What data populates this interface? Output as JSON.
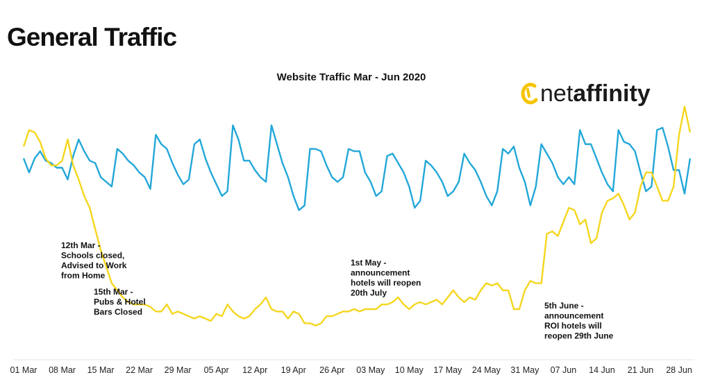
{
  "page_heading": "General Traffic",
  "logo": [
    "net",
    "affinity"
  ],
  "chart_data": {
    "type": "line",
    "title": "Website Traffic Mar - Jun 2020",
    "categories": [
      "01 Mar",
      null,
      null,
      null,
      null,
      null,
      null,
      "08 Mar",
      null,
      null,
      null,
      null,
      null,
      null,
      "15 Mar",
      null,
      null,
      null,
      null,
      null,
      null,
      "22 Mar",
      null,
      null,
      null,
      null,
      null,
      null,
      "29 Mar",
      null,
      null,
      null,
      null,
      null,
      null,
      "05 Apr",
      null,
      null,
      null,
      null,
      null,
      null,
      "12 Apr",
      null,
      null,
      null,
      null,
      null,
      null,
      "19 Apr",
      null,
      null,
      null,
      null,
      null,
      null,
      "26 Apr",
      null,
      null,
      null,
      null,
      null,
      null,
      "03 May",
      null,
      null,
      null,
      null,
      null,
      null,
      "10 May",
      null,
      null,
      null,
      null,
      null,
      null,
      "17 May",
      null,
      null,
      null,
      null,
      null,
      null,
      "24 May",
      null,
      null,
      null,
      null,
      null,
      null,
      "31 May",
      null,
      null,
      null,
      null,
      null,
      null,
      "07 Jun",
      null,
      null,
      null,
      null,
      null,
      null,
      "14 Jun",
      null,
      null,
      null,
      null,
      null,
      null,
      "21 Jun",
      null,
      null,
      null,
      null,
      null,
      null,
      "28 Jun",
      null,
      null
    ],
    "ylim": [
      0,
      100
    ],
    "series": [
      {
        "color": "#22a7d8",
        "values": [
          74,
          68,
          74,
          77,
          73,
          72,
          70,
          70,
          65,
          75,
          82,
          77,
          73,
          72,
          66,
          64,
          62,
          78,
          76,
          73,
          71,
          68,
          66,
          61,
          84,
          80,
          78,
          72,
          67,
          63,
          65,
          80,
          82,
          74,
          68,
          63,
          58,
          60,
          88,
          82,
          73,
          73,
          69,
          66,
          64,
          88,
          80,
          72,
          66,
          58,
          52,
          54,
          78,
          78,
          77,
          71,
          66,
          64,
          66,
          78,
          77,
          77,
          68,
          64,
          58,
          60,
          75,
          76,
          72,
          68,
          62,
          53,
          56,
          73,
          71,
          68,
          64,
          58,
          60,
          64,
          76,
          72,
          69,
          64,
          58,
          54,
          60,
          78,
          76,
          79,
          70,
          64,
          54,
          62,
          80,
          76,
          72,
          66,
          63,
          66,
          63,
          86,
          80,
          80,
          74,
          68,
          63,
          60,
          86,
          81,
          80,
          77,
          68,
          60,
          62,
          86,
          87,
          79,
          69,
          69,
          59,
          74
        ]
      },
      {
        "color": "#f5d61d",
        "values": [
          79,
          86,
          85,
          81,
          74,
          71,
          71,
          73,
          82,
          71,
          65,
          58,
          53,
          44,
          35,
          28,
          21,
          18,
          15,
          13,
          12,
          12,
          12,
          11,
          9,
          9,
          12,
          8,
          9,
          8,
          7,
          6,
          7,
          6,
          5,
          8,
          7,
          12,
          9,
          7,
          6,
          7,
          10,
          12,
          15,
          10,
          9,
          9,
          6,
          9,
          8,
          4,
          4,
          3,
          4,
          7,
          7,
          8,
          9,
          9,
          10,
          9,
          10,
          10,
          10,
          12,
          12,
          13,
          15,
          12,
          10,
          12,
          13,
          12,
          13,
          14,
          12,
          15,
          18,
          15,
          13,
          15,
          14,
          18,
          21,
          20,
          21,
          18,
          18,
          10,
          10,
          18,
          22,
          21,
          21,
          42,
          43,
          41,
          47,
          53,
          52,
          46,
          48,
          38,
          40,
          51,
          56,
          57,
          59,
          54,
          48,
          51,
          62,
          68,
          68,
          62,
          56,
          56,
          62,
          84,
          96,
          85
        ]
      }
    ],
    "annotations": [
      [
        "12th Mar -",
        "Schools closed,",
        "Advised to Work",
        "from Home"
      ],
      [
        "15th Mar -",
        "Pubs & Hotel",
        "Bars Closed"
      ],
      [
        "1st May -",
        "announcement",
        "hotels will reopen",
        "20th July"
      ],
      [
        "5th June -",
        "announcement",
        "ROI hotels will",
        "reopen 29th June"
      ]
    ]
  }
}
